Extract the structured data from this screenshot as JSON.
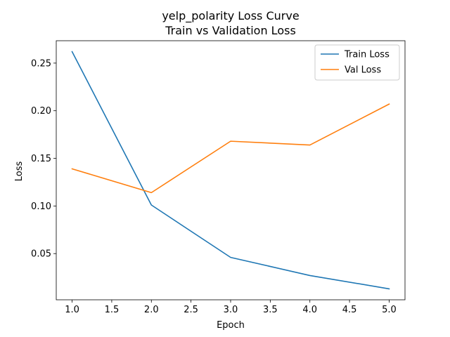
{
  "chart_data": {
    "type": "line",
    "title": "yelp_polarity Loss Curve",
    "subtitle": "Train vs Validation Loss",
    "xlabel": "Epoch",
    "ylabel": "Loss",
    "x": [
      1,
      2,
      3,
      4,
      5
    ],
    "xlim": [
      0.8,
      5.2
    ],
    "ylim": [
      0.0015,
      0.2735
    ],
    "xticks": [
      1.0,
      1.5,
      2.0,
      2.5,
      3.0,
      3.5,
      4.0,
      4.5,
      5.0
    ],
    "xtick_labels": [
      "1.0",
      "1.5",
      "2.0",
      "2.5",
      "3.0",
      "3.5",
      "4.0",
      "4.5",
      "5.0"
    ],
    "yticks": [
      0.05,
      0.1,
      0.15,
      0.2,
      0.25
    ],
    "ytick_labels": [
      "0.05",
      "0.10",
      "0.15",
      "0.20",
      "0.25"
    ],
    "grid": false,
    "legend_position": "top-right",
    "series": [
      {
        "name": "Train Loss",
        "color": "#1f77b4",
        "values": [
          0.262,
          0.101,
          0.046,
          0.027,
          0.013
        ]
      },
      {
        "name": "Val Loss",
        "color": "#ff7f0e",
        "values": [
          0.139,
          0.114,
          0.168,
          0.164,
          0.207
        ]
      }
    ]
  }
}
